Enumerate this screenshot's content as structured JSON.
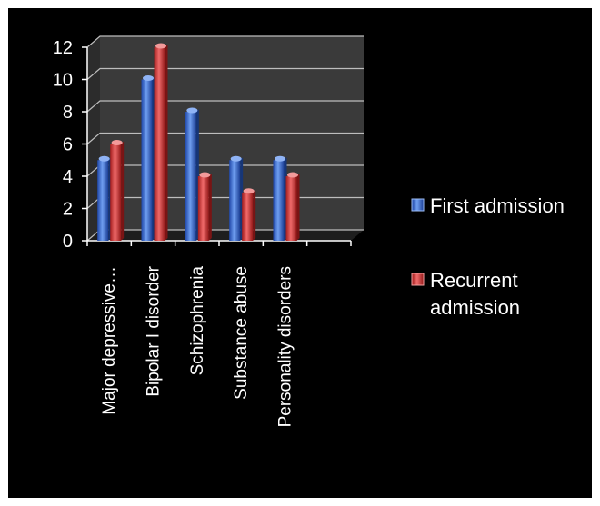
{
  "chart_data": {
    "type": "bar",
    "categories": [
      "Major depressive…",
      "Bipolar I disorder",
      "Schizophrenia",
      "Substance abuse",
      "Personality disorders",
      ""
    ],
    "series": [
      {
        "name": "First admission",
        "values": [
          5,
          10,
          8,
          5,
          5,
          null
        ],
        "color": "#3a6fd0"
      },
      {
        "name": "Recurrent admission",
        "values": [
          6,
          12,
          4,
          3,
          4,
          null
        ],
        "color": "#d23a3a"
      }
    ],
    "title": "",
    "xlabel": "",
    "ylabel": "",
    "ylim": [
      0,
      12
    ],
    "yticks": [
      "0",
      "2",
      "4",
      "6",
      "8",
      "10",
      "12"
    ],
    "grid": true,
    "legend_position": "right",
    "legend": {
      "first": [
        "First admission"
      ],
      "recurrent": [
        "Recurrent",
        "admission"
      ]
    },
    "colors": {
      "background": "#000000",
      "plot_wall": "#3a3a3a",
      "grid": "#bdbdbd",
      "axis": "#ffffff"
    }
  }
}
